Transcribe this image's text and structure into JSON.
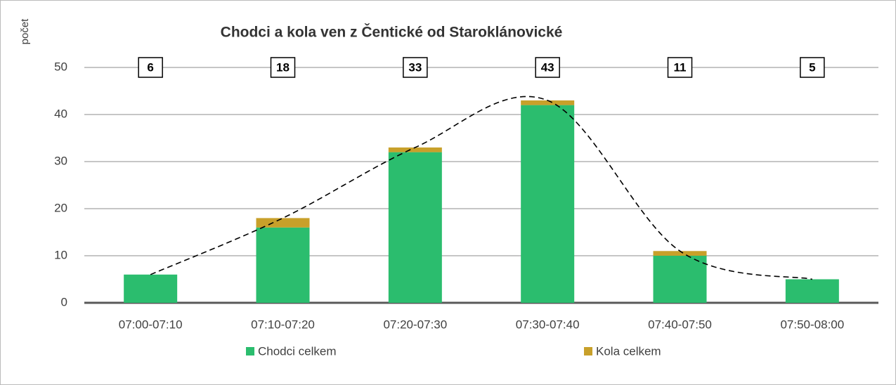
{
  "chart_data": {
    "type": "bar",
    "stacked": true,
    "title": "Chodci a kola ven z Čentické od Staroklánovické",
    "y_label": "počet",
    "categories": [
      "07:00-07:10",
      "07:10-07:20",
      "07:20-07:30",
      "07:30-07:40",
      "07:40-07:50",
      "07:50-08:00"
    ],
    "series": [
      {
        "name": "Chodci celkem",
        "color": "#2bbd6e",
        "values": [
          6,
          16,
          32,
          42,
          10,
          5
        ]
      },
      {
        "name": "Kola celkem",
        "color": "#c8a02a",
        "values": [
          0,
          2,
          1,
          1,
          1,
          0
        ]
      }
    ],
    "totals": [
      6,
      18,
      33,
      43,
      11,
      5
    ],
    "ylim": [
      0,
      50
    ],
    "yticks": [
      0,
      10,
      20,
      30,
      40,
      50
    ],
    "grid": true,
    "legend": "bottom"
  }
}
